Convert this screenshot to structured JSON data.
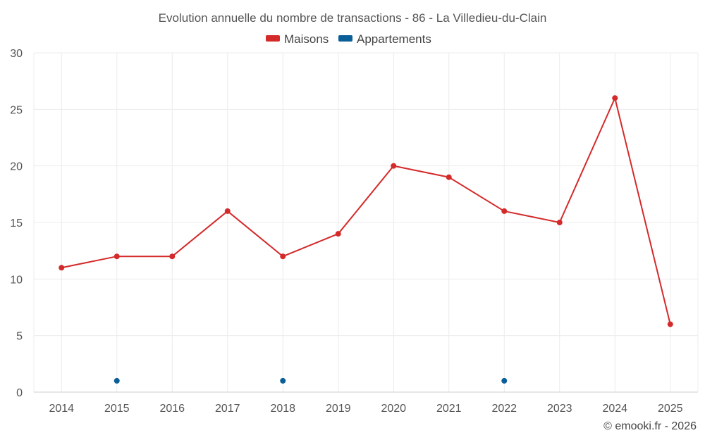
{
  "chart_data": {
    "type": "line",
    "title": "Evolution annuelle du nombre de transactions - 86 - La Villedieu-du-Clain",
    "categories": [
      "2014",
      "2015",
      "2016",
      "2017",
      "2018",
      "2019",
      "2020",
      "2021",
      "2022",
      "2023",
      "2024",
      "2025"
    ],
    "ylim": [
      0,
      30
    ],
    "yticks": [
      0,
      5,
      10,
      15,
      20,
      25,
      30
    ],
    "grid": true,
    "legend_position": "top-center",
    "series": [
      {
        "name": "Maisons",
        "color": "#d42a2a",
        "draw_line": true,
        "values": [
          11,
          12,
          12,
          16,
          12,
          14,
          20,
          19,
          16,
          15,
          26,
          6
        ]
      },
      {
        "name": "Appartements",
        "color": "#0a5f98",
        "draw_line": false,
        "values": [
          null,
          1,
          null,
          null,
          1,
          null,
          null,
          null,
          1,
          null,
          null,
          null
        ]
      }
    ],
    "xlabel": "",
    "ylabel": ""
  },
  "credit": "© emooki.fr - 2026"
}
